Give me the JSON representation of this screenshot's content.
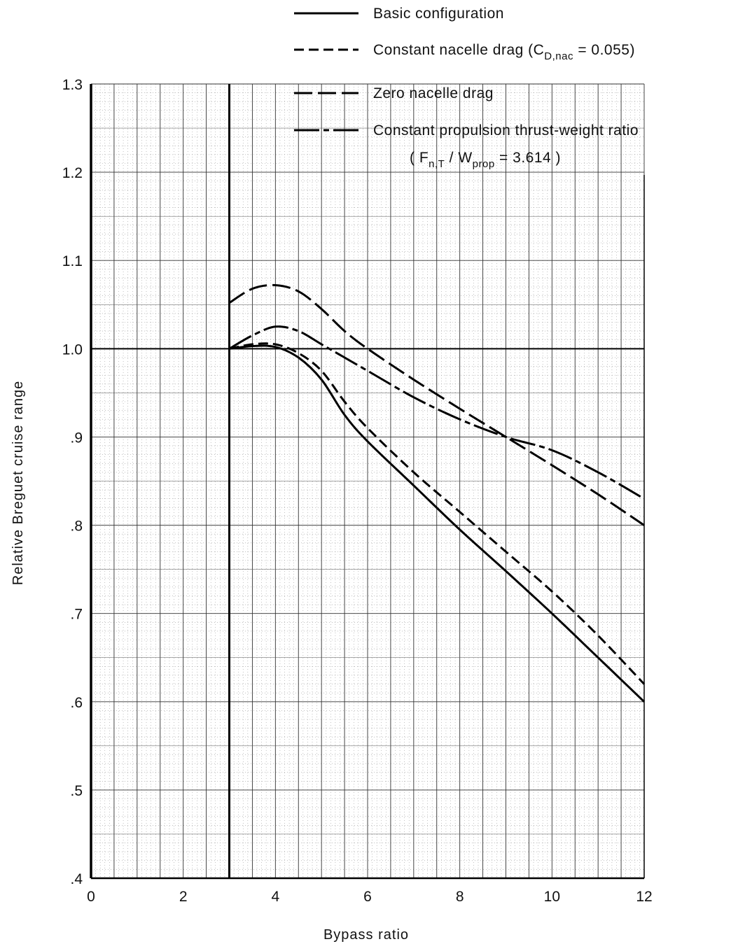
{
  "chart_data": {
    "type": "line",
    "xlabel": "Bypass ratio",
    "ylabel": "Relative Breguet cruise range",
    "xlim": [
      0,
      12
    ],
    "ylim": [
      0.4,
      1.3
    ],
    "x_ticks": [
      0,
      2,
      4,
      6,
      8,
      10,
      12
    ],
    "x_tick_labels": [
      "0",
      "2",
      "4",
      "6",
      "8",
      "10",
      "12"
    ],
    "y_ticks": [
      1.3,
      1.2,
      1.1,
      1.0,
      0.9,
      0.8,
      0.7,
      0.6,
      0.5,
      0.4
    ],
    "y_tick_labels": [
      "1.3",
      "1.2",
      "1.1",
      "1.0",
      ".9",
      ".8",
      ".7",
      ".6",
      ".5",
      ".4"
    ],
    "grid": true,
    "legend_position": "top-right",
    "legend": {
      "basic": "Basic configuration",
      "nacelle_text": "Constant nacelle drag (C",
      "nacelle_sub": "D,nac",
      "nacelle_tail": " = 0.055)",
      "zero": "Zero nacelle drag",
      "thrust_line1": "Constant propulsion thrust-weight ratio",
      "thrust_l2_open": "( F",
      "thrust_l2_sub1": "n,T",
      "thrust_l2_slash": " / W",
      "thrust_l2_sub2": "prop",
      "thrust_l2_tail": " = 3.614 )"
    },
    "reference_line": {
      "y": 1.0
    },
    "series": [
      {
        "id": "basic",
        "name": "Basic configuration",
        "style": "solid",
        "x": [
          3,
          3.5,
          4,
          4.5,
          5,
          5.5,
          6,
          7,
          8,
          9,
          10,
          11,
          12
        ],
        "y": [
          1.0,
          1.003,
          1.002,
          0.99,
          0.965,
          0.925,
          0.895,
          0.845,
          0.795,
          0.748,
          0.7,
          0.65,
          0.6
        ]
      },
      {
        "id": "nacelle",
        "name": "Constant nacelle drag",
        "style": "short-dash",
        "x": [
          3,
          3.5,
          4,
          4.5,
          5,
          5.5,
          6,
          7,
          8,
          9,
          10,
          11,
          12
        ],
        "y": [
          1.0,
          1.005,
          1.005,
          0.995,
          0.975,
          0.94,
          0.91,
          0.86,
          0.815,
          0.77,
          0.725,
          0.675,
          0.62
        ]
      },
      {
        "id": "zero",
        "name": "Zero nacelle drag",
        "style": "long-dash",
        "x": [
          3,
          3.5,
          4,
          4.5,
          5,
          5.5,
          6,
          7,
          8,
          9,
          10,
          11,
          12
        ],
        "y": [
          1.052,
          1.068,
          1.072,
          1.065,
          1.045,
          1.02,
          1.0,
          0.965,
          0.932,
          0.9,
          0.868,
          0.835,
          0.8
        ]
      },
      {
        "id": "thrust",
        "name": "Constant propulsion thrust-weight ratio",
        "style": "dash-dot",
        "x": [
          3,
          3.5,
          4,
          4.5,
          5,
          5.5,
          6,
          7,
          8,
          9,
          10,
          11,
          12
        ],
        "y": [
          1.0,
          1.015,
          1.025,
          1.02,
          1.005,
          0.99,
          0.975,
          0.945,
          0.92,
          0.9,
          0.885,
          0.86,
          0.83
        ]
      }
    ]
  }
}
